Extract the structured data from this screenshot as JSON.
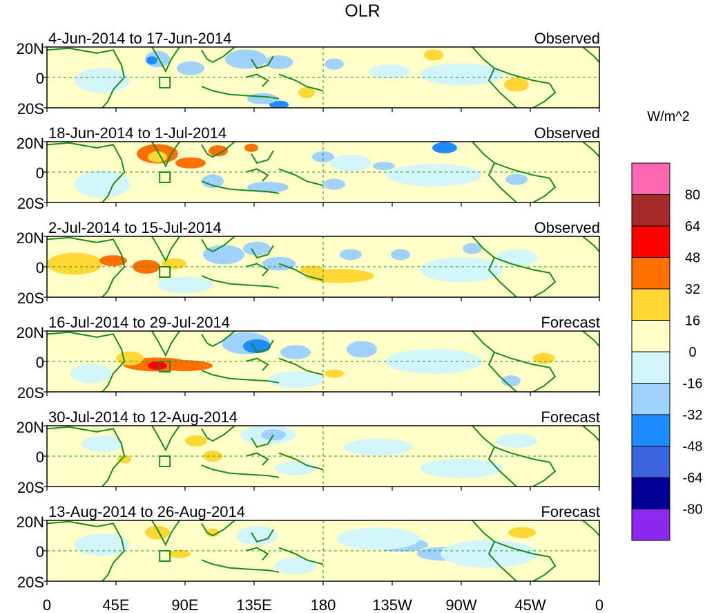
{
  "chart_data": {
    "type": "heatmap",
    "title": "OLR",
    "units": "W/m^2",
    "x_ticks": [
      "0",
      "45E",
      "90E",
      "135E",
      "180",
      "135W",
      "90W",
      "45W",
      "0"
    ],
    "y_ticks": [
      "20N",
      "0",
      "20S"
    ],
    "colorbar": {
      "labels": [
        "80",
        "64",
        "48",
        "32",
        "16",
        "0",
        "-16",
        "-32",
        "-48",
        "-64",
        "-80"
      ],
      "colors": [
        "#ff69b4",
        "#a52a2a",
        "#ff0000",
        "#ff7000",
        "#ffd735",
        "#ffffc8",
        "#d2f5fa",
        "#a0d2ff",
        "#1e8cff",
        "#3c64dc",
        "#000096",
        "#8c28f0"
      ]
    },
    "panels": [
      {
        "period": "4-Jun-2014 to 17-Jun-2014",
        "kind": "Observed"
      },
      {
        "period": "18-Jun-2014 to 1-Jul-2014",
        "kind": "Observed"
      },
      {
        "period": "2-Jul-2014 to 15-Jul-2014",
        "kind": "Observed"
      },
      {
        "period": "16-Jul-2014 to 29-Jul-2014",
        "kind": "Forecast"
      },
      {
        "period": "30-Jul-2014 to 12-Aug-2014",
        "kind": "Forecast"
      },
      {
        "period": "13-Aug-2014 to 26-Aug-2014",
        "kind": "Forecast"
      }
    ]
  }
}
